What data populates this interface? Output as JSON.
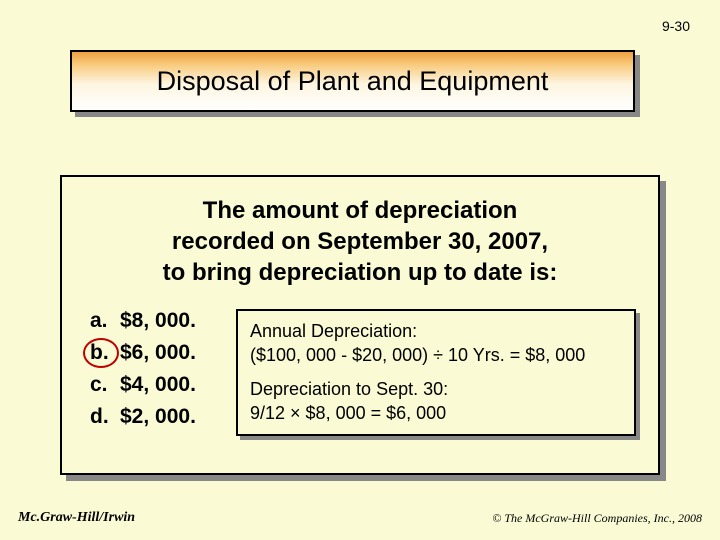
{
  "slide_number": "9-30",
  "title": "Disposal of Plant and Equipment",
  "question_line1": "The amount of depreciation",
  "question_line2": "recorded on September 30, 2007,",
  "question_line3": "to bring depreciation up to date is:",
  "options": {
    "a": {
      "label": "a.",
      "value": "$8, 000."
    },
    "b": {
      "label": "b.",
      "value": "$6, 000."
    },
    "c": {
      "label": "c.",
      "value": "$4, 000."
    },
    "d": {
      "label": "d.",
      "value": "$2, 000."
    }
  },
  "correct_option": "b",
  "answer": {
    "line1": "Annual Depreciation:",
    "line2": "($100, 000 - $20, 000) ÷ 10 Yrs. = $8, 000",
    "line3": "Depreciation to Sept. 30:",
    "line4": "9/12 × $8, 000 = $6, 000"
  },
  "footer": {
    "left": "Mc.Graw-Hill/Irwin",
    "right": "© The McGraw-Hill Companies, Inc., 2008"
  },
  "colors": {
    "background": "#fafbd5",
    "shadow": "#888888",
    "circle": "#c00000",
    "gradient_top": "#f0a040",
    "gradient_bottom": "#ffffff"
  }
}
